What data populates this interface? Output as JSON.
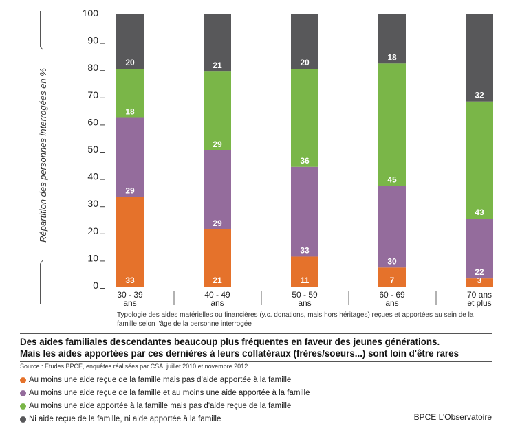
{
  "chart_data": {
    "type": "bar",
    "stacked": true,
    "title": "Des aides familiales descendantes beaucoup plus fréquentes en faveur des jeunes générations.",
    "subtitle": "Mais les aides apportées par ces dernières à leurs collatéraux (frères/soeurs...) sont loin d'être rares",
    "xlabel": "Typologie des aides matérielles ou financières (y.c. donations, mais hors héritages) reçues et apportées au sein de la famille selon l'âge de la personne interrogée",
    "ylabel": "Répartition des personnes interrogées en %",
    "ylim": [
      0,
      100
    ],
    "yticks": [
      "0",
      "10",
      "20",
      "30",
      "40",
      "50",
      "60",
      "70",
      "80",
      "90",
      "100"
    ],
    "categories": [
      {
        "line1": "30 - 39",
        "line2": "ans"
      },
      {
        "line1": "40 - 49",
        "line2": "ans"
      },
      {
        "line1": "50 - 59",
        "line2": "ans"
      },
      {
        "line1": "60 - 69",
        "line2": "ans"
      },
      {
        "line1": "70 ans",
        "line2": "et plus"
      }
    ],
    "series": [
      {
        "name": "Au moins une aide reçue de la famille mais pas d'aide apportée à la famille",
        "color": "#e5722b",
        "values": [
          33,
          21,
          11,
          7,
          3
        ]
      },
      {
        "name": "Au moins une aide reçue de la famille et au moins une aide apportée à la famille",
        "color": "#946c9c",
        "values": [
          29,
          29,
          33,
          30,
          22
        ]
      },
      {
        "name": "Au moins une aide apportée à la famille mais pas d'aide reçue de la famille",
        "color": "#7ab648",
        "values": [
          18,
          29,
          36,
          45,
          43
        ]
      },
      {
        "name": "Ni aide reçue de la famille, ni aide apportée à la famille",
        "color": "#58585a",
        "values": [
          20,
          21,
          20,
          18,
          32
        ]
      }
    ],
    "legend_position": "bottom-left",
    "grid": false
  },
  "caption": {
    "xcaption": "Typologie des aides matérielles ou financières (y.c. donations, mais hors héritages) reçues et apportées au sein de la famille selon l'âge de la personne interrogée",
    "title_line1": "Des aides familiales descendantes beaucoup plus fréquentes en faveur des jeunes générations.",
    "title_line2": "Mais les aides apportées par ces dernières à leurs collatéraux (frères/soeurs...) sont loin d'être rares",
    "source": "Source : Études BPCE, enquêtes réalisées par CSA, juillet 2010 et novembre 2012",
    "footer": "BPCE L’Observatoire"
  }
}
